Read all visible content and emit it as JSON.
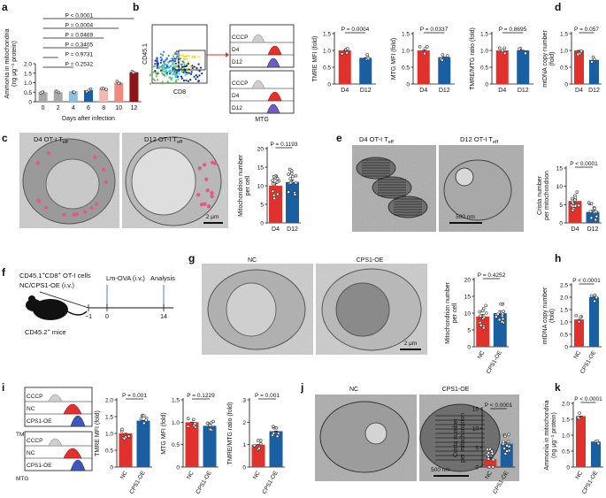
{
  "colors": {
    "red": "#e0312d",
    "blue": "#1b5fa3",
    "darkred": "#8e1418",
    "salmon": "#ef8a80",
    "lightblue": "#8fc0e0",
    "gray": "#a8a8a8",
    "pink": "#f3b6b0"
  },
  "panels": {
    "a": {
      "letter": "a",
      "ylabel1": "Ammonia in mitochondria",
      "ylabel2": "(ng μg⁻¹ protein)",
      "xlabel": "Days after infection",
      "categories": [
        "0",
        "2",
        "4",
        "6",
        "8",
        "10",
        "12"
      ],
      "values": [
        0.5,
        0.5,
        0.55,
        0.6,
        0.7,
        1.0,
        1.55
      ],
      "ymax": 2.0,
      "yticks": [
        "0",
        "0.5",
        "1.0",
        "1.5",
        "2.0"
      ],
      "pvalues": [
        "P < 0.0001",
        "P = 0.0004",
        "P = 0.0469",
        "P = 0.3405",
        "P = 0.9731",
        "P = 0.2532"
      ]
    },
    "b": {
      "letter": "b",
      "flow_y": "CD45.1",
      "flow_x": "CD8",
      "tmre": "TMRE",
      "mtg": "MTG",
      "hist_labels": [
        "CCCP",
        "D4",
        "D12"
      ],
      "charts": [
        {
          "ylabel": "TMRE MFI (fold)",
          "p": "P = 0.0004",
          "cats": [
            "D4",
            "D12"
          ],
          "values": [
            1.0,
            0.78
          ],
          "ymax": 1.5,
          "yticks": [
            "0",
            "0.5",
            "1.0",
            "1.5"
          ]
        },
        {
          "ylabel": "MTG MFI (fold)",
          "p": "P = 0.0337",
          "cats": [
            "D4",
            "D12"
          ],
          "values": [
            1.0,
            0.8
          ],
          "ymax": 1.5,
          "yticks": [
            "0",
            "0.5",
            "1.0",
            "1.5"
          ]
        },
        {
          "ylabel": "TMRE/MTG ratio (fold)",
          "p": "P = 0.8695",
          "cats": [
            "D4",
            "D12"
          ],
          "values": [
            1.0,
            1.0
          ],
          "ymax": 1.5,
          "yticks": [
            "0",
            "0.5",
            "1.0",
            "1.5"
          ]
        }
      ]
    },
    "d": {
      "letter": "d",
      "ylabel1": "mtDNA copy number",
      "ylabel2": "(fold)",
      "p": "P = 0.057",
      "cats": [
        "D4",
        "D12"
      ],
      "values": [
        1.0,
        0.72
      ],
      "ymax": 1.5,
      "yticks": [
        "0",
        "0.5",
        "1.0",
        "1.5"
      ]
    },
    "c": {
      "letter": "c",
      "img1": "D4 OT-I T",
      "img2": "D12 OT-I T",
      "sub": "eff",
      "scale": "2 μm",
      "ylabel1": "Mitochondrion number",
      "ylabel2": "per cell",
      "p": "P = 0.1193",
      "cats": [
        "D4",
        "D12"
      ],
      "values": [
        10,
        11
      ],
      "ymax": 20,
      "yticks": [
        "0",
        "5",
        "10",
        "15",
        "20"
      ]
    },
    "e": {
      "letter": "e",
      "img1": "D4 OT-I T",
      "img2": "D12 OT-I T",
      "sub": "eff",
      "scale": "500 nm",
      "ylabel1": "Crista number",
      "ylabel2": "per mitochondrion",
      "p": "P < 0.0001",
      "cats": [
        "D4",
        "D12"
      ],
      "values": [
        6,
        3
      ],
      "ymax": 15,
      "yticks": [
        "0",
        "5",
        "10",
        "15"
      ]
    },
    "f": {
      "letter": "f",
      "line1": "CD45.1",
      "line1b": "CD8",
      "line1c": "OT-I cells",
      "line2": "NC/CPS1-OE (i.v.)",
      "lm": "Lm-OVA (i.v.)",
      "analysis": "Analysis",
      "ticks": [
        "−1",
        "0",
        "14"
      ],
      "mice": "CD45.2",
      "mice2": "mice"
    },
    "g": {
      "letter": "g",
      "img1": "NC",
      "img2": "CPS1-OE",
      "scale": "2 μm",
      "ylabel1": "Mitochondrion number",
      "ylabel2": "per cell",
      "p": "P = 0.4252",
      "cats": [
        "NC",
        "CPS1-OE"
      ],
      "values": [
        9,
        10
      ],
      "ymax": 20,
      "yticks": [
        "0",
        "5",
        "10",
        "15",
        "20"
      ]
    },
    "h": {
      "letter": "h",
      "ylabel1": "mtDNA copy number",
      "ylabel2": "(fold)",
      "p": "P < 0.0001",
      "cats": [
        "NC",
        "CPS1-OE"
      ],
      "values": [
        1.1,
        2.0
      ],
      "ymax": 2.5,
      "yticks": [
        "0",
        "0.5",
        "1.0",
        "1.5",
        "2.0",
        "2.5"
      ]
    },
    "i": {
      "letter": "i",
      "hist_labels": [
        "CCCP",
        "NC",
        "CPS1-OE"
      ],
      "tmre": "TMRE",
      "mtg": "MTG",
      "charts": [
        {
          "ylabel": "TMRE MFI (fold)",
          "p": "P = 0.001",
          "cats": [
            "NC",
            "CPS1-OE"
          ],
          "values": [
            1.0,
            1.38
          ],
          "ymax": 2.0,
          "yticks": [
            "0",
            "0.5",
            "1.0",
            "1.5",
            "2.0"
          ]
        },
        {
          "ylabel": "MTG MFI (fold)",
          "p": "P = 0.1229",
          "cats": [
            "NC",
            "CPS1-OE"
          ],
          "values": [
            1.0,
            0.92
          ],
          "ymax": 1.5,
          "yticks": [
            "0",
            "0.5",
            "1.0",
            "1.5"
          ]
        },
        {
          "ylabel": "TMRE/MTG ratio (fold)",
          "p": "P = 0.001",
          "cats": [
            "NC",
            "CPS1-OE"
          ],
          "values": [
            1.0,
            1.6
          ],
          "ymax": 3,
          "yticks": [
            "0",
            "1",
            "2",
            "3"
          ]
        }
      ]
    },
    "j": {
      "letter": "j",
      "img1": "NC",
      "img2": "CPS1-OE",
      "scale": "500 nm",
      "ylabel1": "Crista number",
      "ylabel2": "per mitochondrion",
      "p": "P < 0.0001",
      "cats": [
        "NC",
        "CPS1-OE"
      ],
      "values": [
        2,
        6
      ],
      "ymax": 15,
      "yticks": [
        "0",
        "5",
        "10",
        "15"
      ]
    },
    "k": {
      "letter": "k",
      "ylabel1": "Ammonia in mitochondria",
      "ylabel2": "(ng μg⁻¹ protein)",
      "p": "P < 0.0001",
      "cats": [
        "NC",
        "CPS1-OE"
      ],
      "values": [
        1.6,
        0.8
      ],
      "ymax": 2.0,
      "yticks": [
        "0",
        "0.5",
        "1.0",
        "1.5",
        "2.0"
      ]
    }
  }
}
